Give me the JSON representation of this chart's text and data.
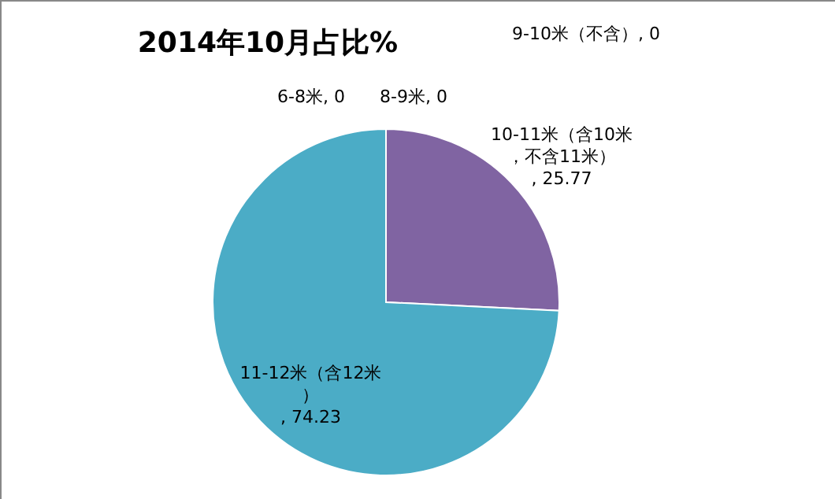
{
  "chart_data": {
    "type": "pie",
    "title": "2014年10月占比%",
    "categories": [
      "6-8米",
      "8-9米",
      "9-10米（不含）",
      "10-11米（含10米，不含11米）",
      "11-12米（含12米）"
    ],
    "values": [
      0,
      0,
      0,
      25.77,
      74.23
    ],
    "value_labels": [
      ", 0",
      ", 0",
      ", 0",
      ", 25.77",
      ", 74.23"
    ],
    "colors": [
      "#4f81bd",
      "#c0504d",
      "#9bbb59",
      "#8064a2",
      "#4bacc6"
    ]
  }
}
